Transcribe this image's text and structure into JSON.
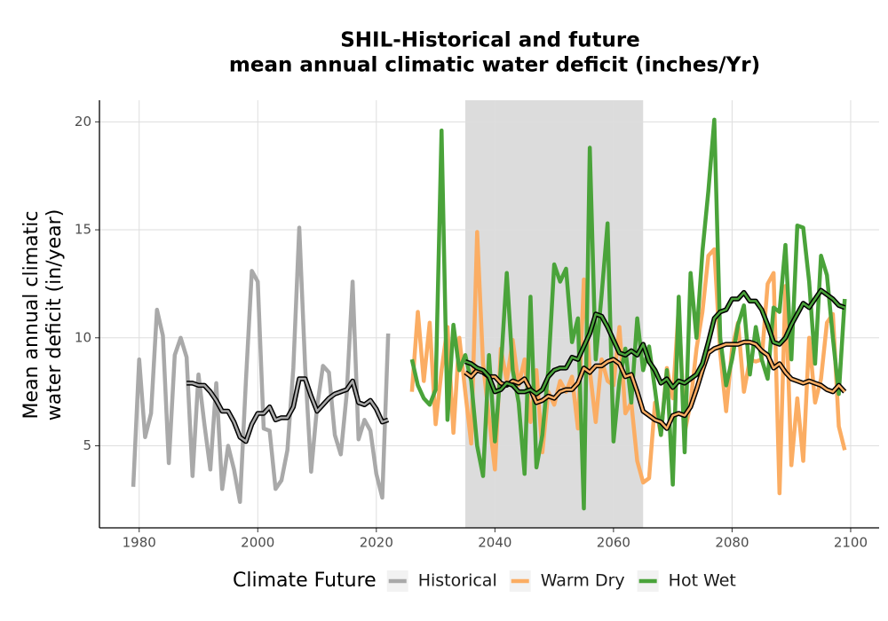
{
  "chart_data": {
    "type": "line",
    "title": "SHIL-Historical and future",
    "subtitle": "mean annual climatic water deficit (inches/Yr)",
    "y_label": [
      "Mean annual climatic",
      "water deficit (in/year)"
    ],
    "legend_title": "Climate Future",
    "legend_position": "bottom",
    "grid": true,
    "shaded_range": [
      2035,
      2065
    ],
    "shade_color": "#dcdcdc",
    "xlim": [
      1973.3,
      2104.8
    ],
    "xticks": [
      1980,
      2000,
      2020,
      2040,
      2060,
      2080,
      2100
    ],
    "ylim": [
      1.2,
      21.0
    ],
    "yticks": [
      5,
      10,
      15,
      20
    ],
    "series": [
      {
        "name": "Historical",
        "color": "#a9a9a9",
        "x": [
          1979,
          1980,
          1981,
          1982,
          1983,
          1984,
          1985,
          1986,
          1987,
          1988,
          1989,
          1990,
          1991,
          1992,
          1993,
          1994,
          1995,
          1996,
          1997,
          1998,
          1999,
          2000,
          2001,
          2002,
          2003,
          2004,
          2005,
          2006,
          2007,
          2008,
          2009,
          2010,
          2011,
          2012,
          2013,
          2014,
          2015,
          2016,
          2017,
          2018,
          2019,
          2020,
          2021,
          2022
        ],
        "values": [
          3.1,
          9.0,
          5.4,
          6.5,
          11.3,
          10.1,
          4.2,
          9.2,
          10.0,
          9.1,
          3.6,
          8.3,
          6.0,
          3.9,
          7.9,
          3.0,
          5.0,
          3.9,
          2.4,
          8.0,
          13.1,
          12.6,
          5.8,
          5.7,
          3.0,
          3.4,
          4.8,
          8.6,
          15.1,
          8.6,
          3.8,
          6.8,
          8.7,
          8.4,
          5.5,
          4.6,
          7.4,
          12.6,
          5.3,
          6.2,
          5.7,
          3.7,
          2.6,
          10.2
        ],
        "trend": {
          "x": [
            1988,
            1989,
            1990,
            1991,
            1992,
            1993,
            1994,
            1995,
            1996,
            1997,
            1998,
            1999,
            2000,
            2001,
            2002,
            2003,
            2004,
            2005,
            2006,
            2007,
            2008,
            2009,
            2010,
            2011,
            2012,
            2013,
            2014,
            2015,
            2016,
            2017,
            2018,
            2019,
            2020,
            2021,
            2022
          ],
          "values": [
            7.9,
            7.9,
            7.8,
            7.8,
            7.5,
            7.1,
            6.6,
            6.6,
            6.1,
            5.4,
            5.2,
            6.0,
            6.5,
            6.5,
            6.8,
            6.2,
            6.3,
            6.3,
            6.8,
            8.1,
            8.1,
            7.3,
            6.6,
            6.9,
            7.2,
            7.4,
            7.5,
            7.6,
            8.0,
            7.0,
            6.9,
            7.1,
            6.7,
            6.1,
            6.2
          ]
        }
      },
      {
        "name": "Warm Dry",
        "color": "#fbad63",
        "x": [
          2026,
          2027,
          2028,
          2029,
          2030,
          2031,
          2032,
          2033,
          2034,
          2035,
          2036,
          2037,
          2038,
          2039,
          2040,
          2041,
          2042,
          2043,
          2044,
          2045,
          2046,
          2047,
          2048,
          2049,
          2050,
          2051,
          2052,
          2053,
          2054,
          2055,
          2056,
          2057,
          2058,
          2059,
          2060,
          2061,
          2062,
          2063,
          2064,
          2065,
          2066,
          2067,
          2068,
          2069,
          2070,
          2071,
          2072,
          2073,
          2074,
          2075,
          2076,
          2077,
          2078,
          2079,
          2080,
          2081,
          2082,
          2083,
          2084,
          2085,
          2086,
          2087,
          2088,
          2089,
          2090,
          2091,
          2092,
          2093,
          2094,
          2095,
          2096,
          2097,
          2098,
          2099
        ],
        "values": [
          7.5,
          11.2,
          8.0,
          10.7,
          6.0,
          8.5,
          10.5,
          5.6,
          10.0,
          7.5,
          5.1,
          14.9,
          8.8,
          6.3,
          3.9,
          9.5,
          8.0,
          9.9,
          7.8,
          9.0,
          6.1,
          8.5,
          4.7,
          7.5,
          6.9,
          8.0,
          7.5,
          8.2,
          5.8,
          12.7,
          8.5,
          6.1,
          9.0,
          8.0,
          7.8,
          10.5,
          6.5,
          7.0,
          4.3,
          3.3,
          3.5,
          7.0,
          5.5,
          8.6,
          7.2,
          11.4,
          5.6,
          7.0,
          9.5,
          11.2,
          13.8,
          14.1,
          9.3,
          6.6,
          9.5,
          10.7,
          7.5,
          9.0,
          8.9,
          9.0,
          12.5,
          13.0,
          2.8,
          12.4,
          4.1,
          7.2,
          4.3,
          10.0,
          7.0,
          8.1,
          10.7,
          11.1,
          5.9,
          4.8
        ],
        "trend": {
          "x": [
            2035,
            2036,
            2037,
            2038,
            2039,
            2040,
            2041,
            2042,
            2043,
            2044,
            2045,
            2046,
            2047,
            2048,
            2049,
            2050,
            2051,
            2052,
            2053,
            2054,
            2055,
            2056,
            2057,
            2058,
            2059,
            2060,
            2061,
            2062,
            2063,
            2064,
            2065,
            2066,
            2067,
            2068,
            2069,
            2070,
            2071,
            2072,
            2073,
            2074,
            2075,
            2076,
            2077,
            2078,
            2079,
            2080,
            2081,
            2082,
            2083,
            2084,
            2085,
            2086,
            2087,
            2088,
            2089,
            2090,
            2091,
            2092,
            2093,
            2094,
            2095,
            2096,
            2097,
            2098,
            2099
          ],
          "values": [
            8.4,
            8.2,
            8.5,
            8.4,
            8.2,
            8.2,
            7.9,
            7.8,
            8.0,
            7.9,
            8.1,
            7.6,
            7.0,
            7.1,
            7.3,
            7.2,
            7.5,
            7.6,
            7.6,
            7.9,
            8.6,
            8.4,
            8.7,
            8.7,
            8.9,
            9.0,
            8.8,
            8.2,
            8.3,
            7.5,
            6.6,
            6.4,
            6.2,
            6.1,
            5.8,
            6.4,
            6.5,
            6.4,
            6.8,
            7.6,
            8.5,
            9.3,
            9.5,
            9.6,
            9.7,
            9.7,
            9.7,
            9.8,
            9.8,
            9.7,
            9.4,
            9.2,
            8.6,
            8.8,
            8.4,
            8.1,
            8.0,
            7.9,
            8.0,
            7.9,
            7.8,
            7.6,
            7.5,
            7.8,
            7.5
          ]
        }
      },
      {
        "name": "Hot Wet",
        "color": "#4aa33a",
        "x": [
          2026,
          2027,
          2028,
          2029,
          2030,
          2031,
          2032,
          2033,
          2034,
          2035,
          2036,
          2037,
          2038,
          2039,
          2040,
          2041,
          2042,
          2043,
          2044,
          2045,
          2046,
          2047,
          2048,
          2049,
          2050,
          2051,
          2052,
          2053,
          2054,
          2055,
          2056,
          2057,
          2058,
          2059,
          2060,
          2061,
          2062,
          2063,
          2064,
          2065,
          2066,
          2067,
          2068,
          2069,
          2070,
          2071,
          2072,
          2073,
          2074,
          2075,
          2076,
          2077,
          2078,
          2079,
          2080,
          2081,
          2082,
          2083,
          2084,
          2085,
          2086,
          2087,
          2088,
          2089,
          2090,
          2091,
          2092,
          2093,
          2094,
          2095,
          2096,
          2097,
          2098,
          2099
        ],
        "values": [
          9.0,
          7.8,
          7.2,
          6.9,
          7.6,
          19.6,
          6.2,
          10.6,
          8.5,
          9.2,
          8.0,
          5.0,
          3.6,
          9.2,
          5.2,
          8.6,
          13.0,
          8.5,
          7.0,
          3.7,
          11.9,
          4.0,
          5.5,
          8.5,
          13.4,
          12.6,
          13.2,
          9.8,
          10.9,
          2.1,
          18.8,
          9.0,
          12.0,
          15.3,
          5.2,
          8.0,
          9.5,
          7.0,
          10.9,
          8.5,
          9.6,
          7.6,
          5.5,
          8.5,
          3.2,
          11.9,
          4.7,
          13.0,
          10.0,
          14.0,
          16.8,
          20.1,
          10.0,
          7.8,
          9.0,
          10.6,
          11.5,
          8.3,
          10.5,
          9.0,
          8.1,
          11.4,
          11.2,
          14.3,
          9.0,
          15.2,
          15.1,
          12.6,
          8.8,
          13.8,
          12.9,
          10.0,
          7.4,
          11.8
        ],
        "trend": {
          "x": [
            2035,
            2036,
            2037,
            2038,
            2039,
            2040,
            2041,
            2042,
            2043,
            2044,
            2045,
            2046,
            2047,
            2048,
            2049,
            2050,
            2051,
            2052,
            2053,
            2054,
            2055,
            2056,
            2057,
            2058,
            2059,
            2060,
            2061,
            2062,
            2063,
            2064,
            2065,
            2066,
            2067,
            2068,
            2069,
            2070,
            2071,
            2072,
            2073,
            2074,
            2075,
            2076,
            2077,
            2078,
            2079,
            2080,
            2081,
            2082,
            2083,
            2084,
            2085,
            2086,
            2087,
            2088,
            2089,
            2090,
            2091,
            2092,
            2093,
            2094,
            2095,
            2096,
            2097,
            2098,
            2099
          ],
          "values": [
            8.9,
            8.8,
            8.6,
            8.5,
            8.2,
            7.5,
            7.6,
            7.9,
            7.8,
            7.5,
            7.5,
            7.6,
            7.4,
            7.6,
            8.2,
            8.5,
            8.6,
            8.6,
            9.1,
            9.0,
            9.6,
            10.2,
            11.1,
            11.0,
            10.5,
            9.9,
            9.3,
            9.2,
            9.4,
            9.2,
            9.7,
            8.9,
            8.5,
            7.9,
            8.1,
            7.7,
            8.0,
            7.9,
            8.1,
            8.3,
            8.8,
            9.8,
            10.9,
            11.2,
            11.3,
            11.8,
            11.8,
            12.1,
            11.7,
            11.7,
            11.3,
            10.6,
            9.8,
            9.7,
            10.0,
            10.6,
            11.1,
            11.6,
            11.4,
            11.8,
            12.2,
            12.0,
            11.8,
            11.5,
            11.4
          ]
        }
      }
    ]
  }
}
